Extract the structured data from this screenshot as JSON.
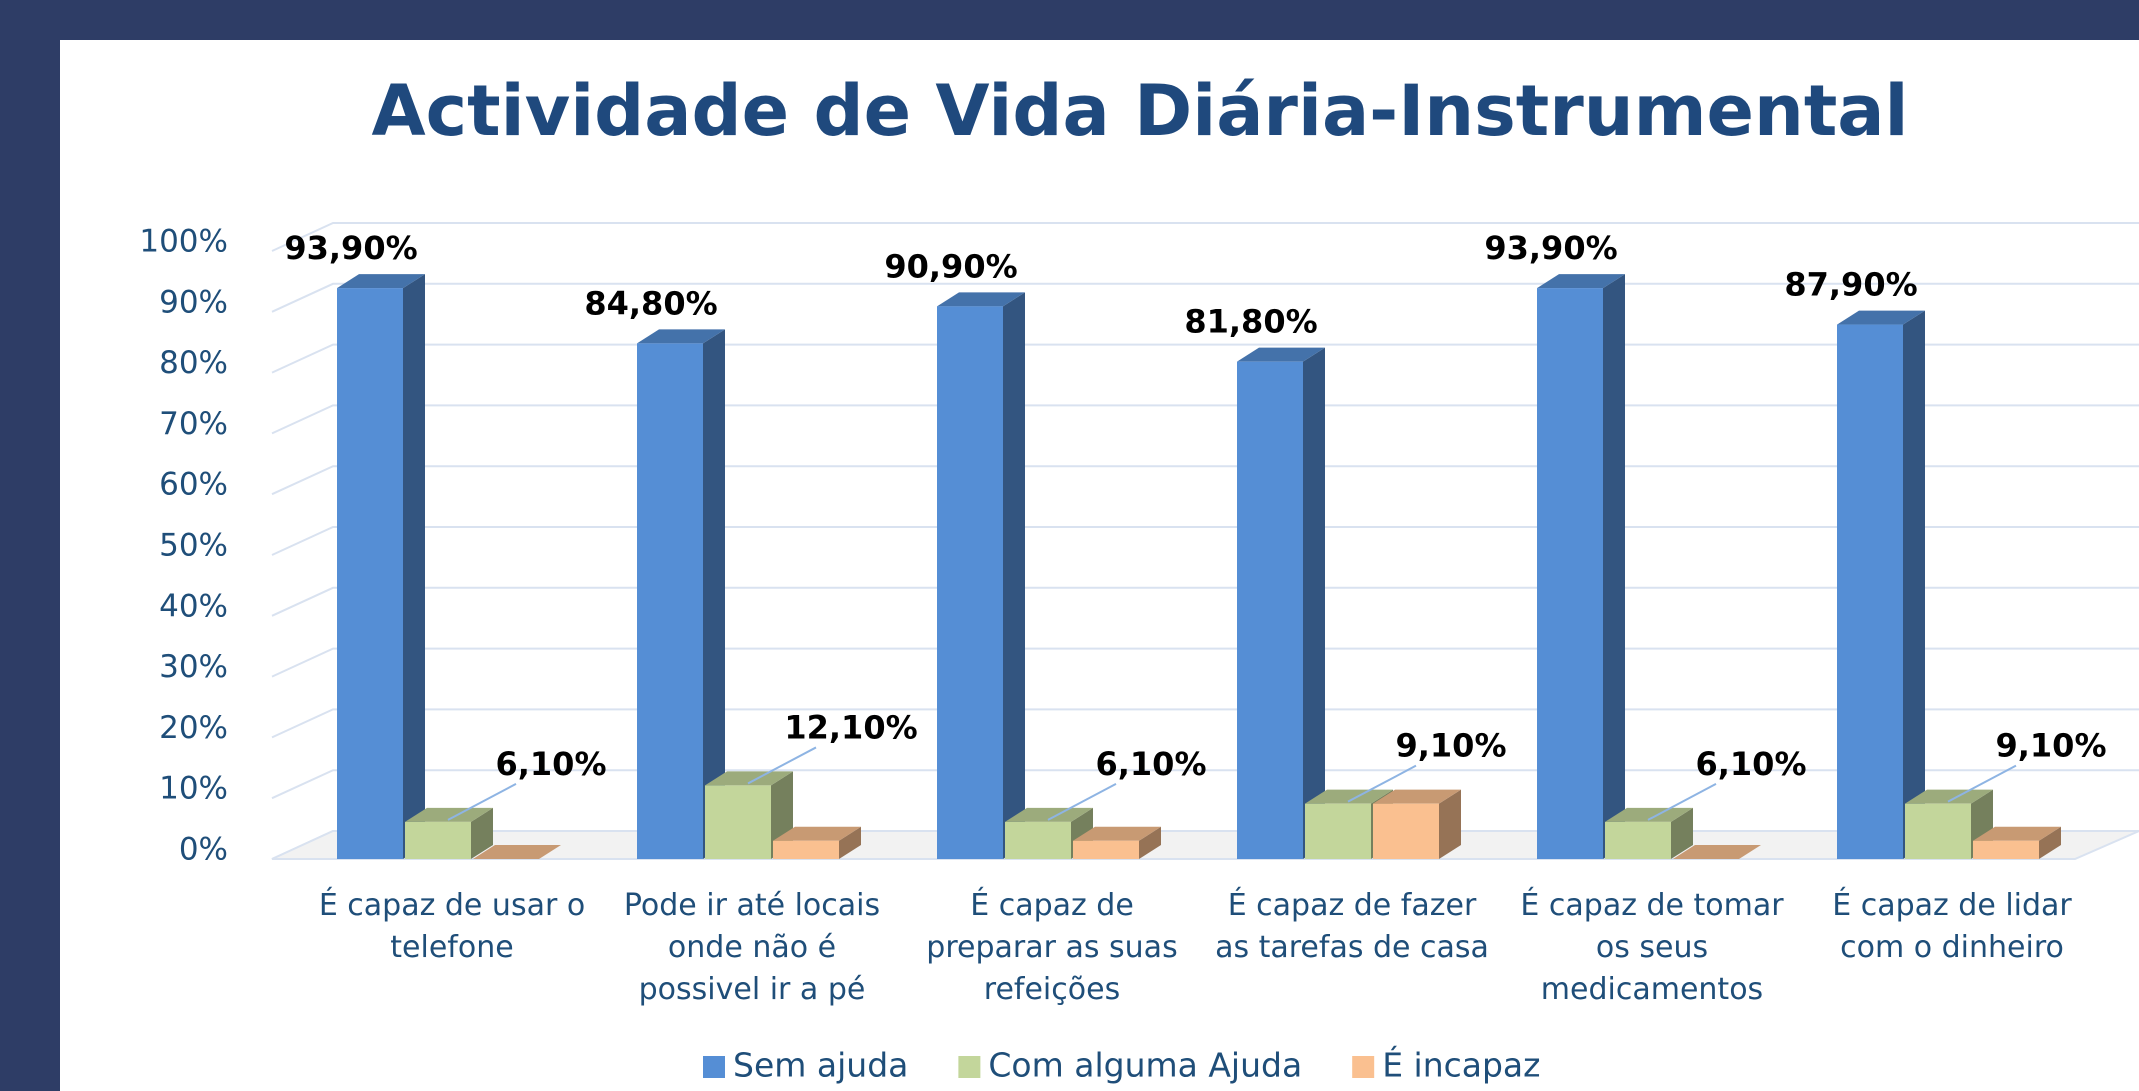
{
  "chart_data": {
    "type": "bar3d",
    "title": "Actividade de Vida Diária-Instrumental",
    "categories": [
      "É capaz de usar o telefone",
      "Pode ir até locais onde não é possivel ir a pé",
      "É capaz de preparar as suas refeições",
      "É capaz de fazer as tarefas de casa",
      "É capaz de tomar os seus medicamentos",
      "É capaz de lidar com o dinheiro"
    ],
    "series": [
      {
        "name": "Sem ajuda",
        "color": "#558ed5",
        "values": [
          93.9,
          84.8,
          90.9,
          81.8,
          93.9,
          87.9
        ],
        "value_labels": [
          "93,90%",
          "84,80%",
          "90,90%",
          "81,80%",
          "93,90%",
          "87,90%"
        ]
      },
      {
        "name": "Com alguma Ajuda",
        "color": "#c3d69b",
        "values": [
          6.1,
          12.1,
          6.1,
          9.1,
          6.1,
          9.1
        ],
        "value_labels": [
          "6,10%",
          "12,10%",
          "6,10%",
          "9,10%",
          "6,10%",
          "9,10%"
        ]
      },
      {
        "name": "É incapaz",
        "color": "#fac090",
        "values": [
          0,
          3,
          3,
          9.1,
          0,
          3
        ]
      }
    ],
    "ylim": [
      0,
      100
    ],
    "yticks": [
      {
        "value": 0,
        "label": "0%"
      },
      {
        "value": 10,
        "label": "10%"
      },
      {
        "value": 20,
        "label": "20%"
      },
      {
        "value": 30,
        "label": "30%"
      },
      {
        "value": 40,
        "label": "40%"
      },
      {
        "value": 50,
        "label": "50%"
      },
      {
        "value": 60,
        "label": "60%"
      },
      {
        "value": 70,
        "label": "70%"
      },
      {
        "value": 80,
        "label": "80%"
      },
      {
        "value": 90,
        "label": "90%"
      },
      {
        "value": 100,
        "label": "100%"
      }
    ],
    "grid": true,
    "legend": "bottom"
  }
}
